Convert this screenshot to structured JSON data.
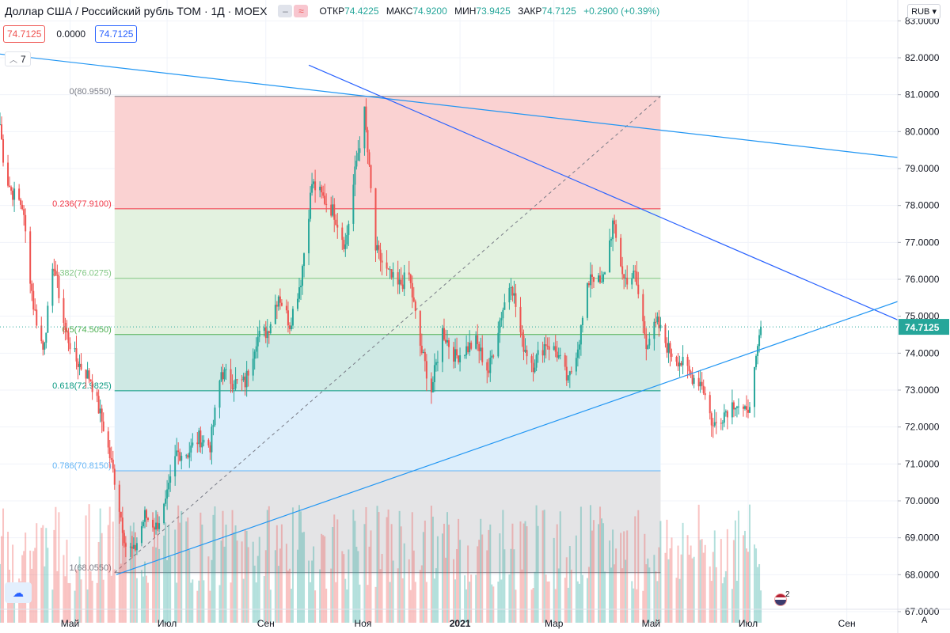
{
  "header": {
    "title": "Доллар США / Российский рубль TOM · 1Д · MOEX",
    "open_label": "ОТКР",
    "open": "74.4225",
    "high_label": "МАКС",
    "high": "74.9200",
    "low_label": "МИН",
    "low": "73.9425",
    "close_label": "ЗАКР",
    "close": "74.7125",
    "change": "+0.2900 (+0.39%)"
  },
  "indicator_values": {
    "first": "74.7125",
    "second": "0.0000",
    "third": "74.7125"
  },
  "indicators_collapsed_count": "7",
  "currency_button": "RUB",
  "event_badge": "2",
  "axis_menu_label": "A",
  "colors": {
    "up": "#26a69a",
    "down": "#ef5350",
    "trend": "#2196f3",
    "trend_dark": "#2962ff",
    "price_line": "#26a69a"
  },
  "chart_data": {
    "type": "candlestick",
    "symbol": "USD/RUB TOM",
    "interval": "1Д",
    "ylim": [
      66.7,
      83.2
    ],
    "yticks": [
      "67.0000",
      "68.0000",
      "69.0000",
      "70.0000",
      "71.0000",
      "72.0000",
      "73.0000",
      "74.0000",
      "75.0000",
      "76.0000",
      "77.0000",
      "78.0000",
      "79.0000",
      "80.0000",
      "81.0000",
      "82.0000",
      "83.0000"
    ],
    "xticks": [
      {
        "label": "Май",
        "date": "2020-05-01"
      },
      {
        "label": "Июл",
        "date": "2020-07-01"
      },
      {
        "label": "Сен",
        "date": "2020-09-01"
      },
      {
        "label": "Ноя",
        "date": "2020-11-01"
      },
      {
        "label": "2021",
        "date": "2021-01-01"
      },
      {
        "label": "Мар",
        "date": "2021-03-01"
      },
      {
        "label": "Май",
        "date": "2021-05-01"
      },
      {
        "label": "Июл",
        "date": "2021-07-01"
      },
      {
        "label": "Сен",
        "date": "2021-09-01"
      }
    ],
    "xrange": [
      "2020-03-18",
      "2021-10-03"
    ],
    "last_price": "74.7125",
    "close_series": [
      {
        "d": "2020-03-18",
        "v": 80.2
      },
      {
        "d": "2020-03-21",
        "v": 78.9
      },
      {
        "d": "2020-03-25",
        "v": 78.4
      },
      {
        "d": "2020-04-01",
        "v": 78.0
      },
      {
        "d": "2020-04-08",
        "v": 75.3
      },
      {
        "d": "2020-04-14",
        "v": 74.1
      },
      {
        "d": "2020-04-21",
        "v": 76.4
      },
      {
        "d": "2020-04-28",
        "v": 74.6
      },
      {
        "d": "2020-05-05",
        "v": 73.8
      },
      {
        "d": "2020-05-14",
        "v": 73.3
      },
      {
        "d": "2020-05-22",
        "v": 72.0
      },
      {
        "d": "2020-05-29",
        "v": 70.6
      },
      {
        "d": "2020-06-05",
        "v": 68.8
      },
      {
        "d": "2020-06-10",
        "v": 68.6
      },
      {
        "d": "2020-06-17",
        "v": 69.6
      },
      {
        "d": "2020-06-24",
        "v": 69.3
      },
      {
        "d": "2020-06-30",
        "v": 69.9
      },
      {
        "d": "2020-07-07",
        "v": 71.3
      },
      {
        "d": "2020-07-14",
        "v": 71.3
      },
      {
        "d": "2020-07-21",
        "v": 71.7
      },
      {
        "d": "2020-07-28",
        "v": 71.5
      },
      {
        "d": "2020-08-04",
        "v": 73.5
      },
      {
        "d": "2020-08-12",
        "v": 73.2
      },
      {
        "d": "2020-08-19",
        "v": 73.2
      },
      {
        "d": "2020-08-26",
        "v": 74.4
      },
      {
        "d": "2020-09-02",
        "v": 74.6
      },
      {
        "d": "2020-09-09",
        "v": 75.6
      },
      {
        "d": "2020-09-16",
        "v": 74.8
      },
      {
        "d": "2020-09-23",
        "v": 76.0
      },
      {
        "d": "2020-09-30",
        "v": 78.6
      },
      {
        "d": "2020-10-07",
        "v": 78.2
      },
      {
        "d": "2020-10-14",
        "v": 77.8
      },
      {
        "d": "2020-10-21",
        "v": 76.9
      },
      {
        "d": "2020-10-28",
        "v": 79.2
      },
      {
        "d": "2020-11-02",
        "v": 80.5
      },
      {
        "d": "2020-11-09",
        "v": 76.8
      },
      {
        "d": "2020-11-16",
        "v": 76.2
      },
      {
        "d": "2020-11-23",
        "v": 75.8
      },
      {
        "d": "2020-11-30",
        "v": 76.1
      },
      {
        "d": "2020-12-07",
        "v": 74.2
      },
      {
        "d": "2020-12-14",
        "v": 73.0
      },
      {
        "d": "2020-12-21",
        "v": 74.6
      },
      {
        "d": "2020-12-29",
        "v": 73.9
      },
      {
        "d": "2021-01-11",
        "v": 74.3
      },
      {
        "d": "2021-01-19",
        "v": 73.5
      },
      {
        "d": "2021-01-26",
        "v": 74.9
      },
      {
        "d": "2021-02-02",
        "v": 76.0
      },
      {
        "d": "2021-02-09",
        "v": 74.3
      },
      {
        "d": "2021-02-16",
        "v": 73.7
      },
      {
        "d": "2021-02-24",
        "v": 74.3
      },
      {
        "d": "2021-03-03",
        "v": 74.0
      },
      {
        "d": "2021-03-10",
        "v": 73.2
      },
      {
        "d": "2021-03-17",
        "v": 74.4
      },
      {
        "d": "2021-03-24",
        "v": 76.2
      },
      {
        "d": "2021-03-31",
        "v": 75.8
      },
      {
        "d": "2021-04-07",
        "v": 77.5
      },
      {
        "d": "2021-04-14",
        "v": 76.0
      },
      {
        "d": "2021-04-21",
        "v": 76.1
      },
      {
        "d": "2021-04-28",
        "v": 74.3
      },
      {
        "d": "2021-05-05",
        "v": 74.8
      },
      {
        "d": "2021-05-12",
        "v": 74.1
      },
      {
        "d": "2021-05-19",
        "v": 73.8
      },
      {
        "d": "2021-05-26",
        "v": 73.4
      },
      {
        "d": "2021-06-02",
        "v": 73.2
      },
      {
        "d": "2021-06-09",
        "v": 72.0
      },
      {
        "d": "2021-06-16",
        "v": 72.4
      },
      {
        "d": "2021-06-23",
        "v": 72.7
      },
      {
        "d": "2021-06-30",
        "v": 72.3
      },
      {
        "d": "2021-07-06",
        "v": 73.7
      },
      {
        "d": "2021-07-09",
        "v": 74.7125
      }
    ],
    "fibonacci": {
      "from_date": "2020-05-29",
      "to_date": "2021-05-07",
      "levels": [
        {
          "ratio": "0",
          "value": 80.955,
          "label": "0(80.9550)",
          "color": "#787b86"
        },
        {
          "ratio": "0.236",
          "value": 77.91,
          "label": "0.236(77.9100)",
          "color": "#f23645"
        },
        {
          "ratio": "0.382",
          "value": 76.0275,
          "label": "0.382(76.0275)",
          "color": "#81c784"
        },
        {
          "ratio": "0.5",
          "value": 74.505,
          "label": "0.5(74.5050)",
          "color": "#4caf50"
        },
        {
          "ratio": "0.618",
          "value": 72.9825,
          "label": "0.618(72.9825)",
          "color": "#089981"
        },
        {
          "ratio": "0.786",
          "value": 70.815,
          "label": "0.786(70.8150)",
          "color": "#64b5f6"
        },
        {
          "ratio": "1",
          "value": 68.055,
          "label": "1(68.0550)",
          "color": "#787b86"
        }
      ],
      "fills": [
        "#fad2d2",
        "#e3f2e0",
        "#e3f2e0",
        "#cfe9e4",
        "#ddeefb",
        "#e4e4e6"
      ]
    },
    "trend_lines": [
      {
        "from": {
          "d": "2020-03-18",
          "v": 82.1
        },
        "to": {
          "d": "2021-10-03",
          "v": 79.3
        },
        "color": "#2196f3"
      },
      {
        "from": {
          "d": "2020-09-28",
          "v": 81.8
        },
        "to": {
          "d": "2021-10-03",
          "v": 74.9
        },
        "color": "#2962ff"
      },
      {
        "from": {
          "d": "2020-05-30",
          "v": 68.0
        },
        "to": {
          "d": "2021-10-03",
          "v": 75.4
        },
        "color": "#2196f3"
      }
    ],
    "dashed_line": {
      "from": {
        "d": "2020-05-29",
        "v": 68.055
      },
      "to": {
        "d": "2021-05-07",
        "v": 80.955
      },
      "color": "#787b86"
    }
  }
}
